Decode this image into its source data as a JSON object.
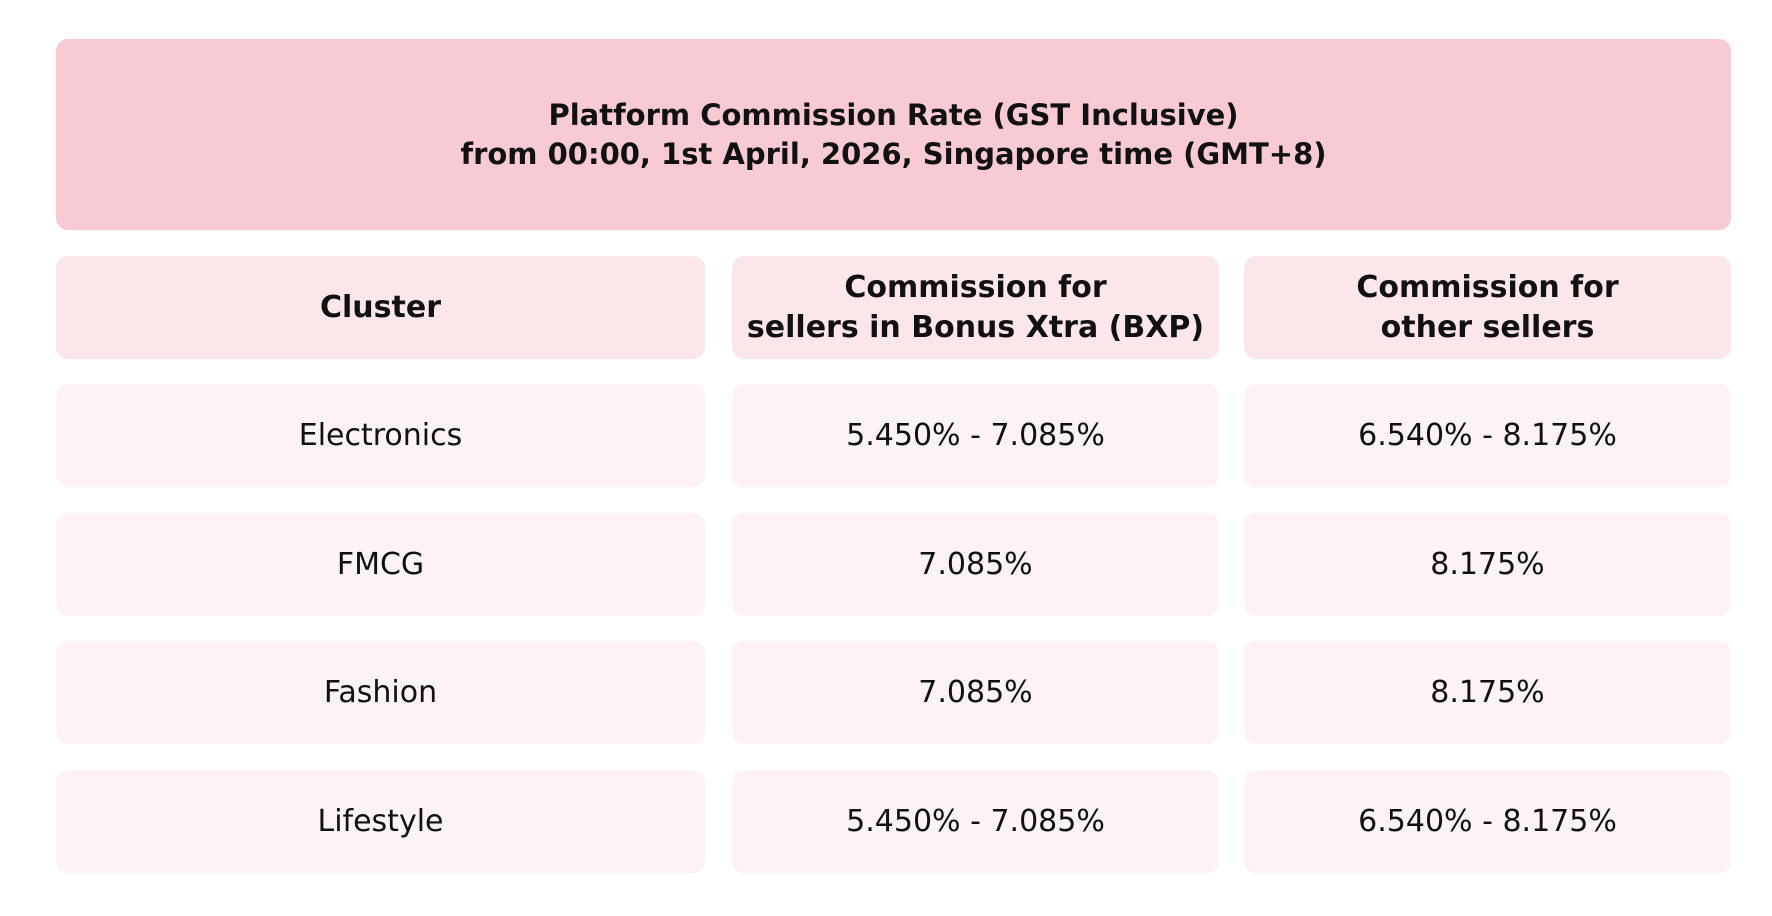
{
  "header": {
    "title": "Platform Commission Rate (GST Inclusive)\nfrom 00:00, 1st April, 2026, Singapore time (GMT+8)"
  },
  "table": {
    "columns": [
      "Cluster",
      "Commission for\nsellers in Bonus Xtra (BXP)",
      "Commission for\nother sellers"
    ],
    "rows": [
      [
        "Electronics",
        "5.450% - 7.085%",
        "6.540% - 8.175%"
      ],
      [
        "FMCG",
        "7.085%",
        "8.175%"
      ],
      [
        "Fashion",
        "7.085%",
        "8.175%"
      ],
      [
        "Lifestyle",
        "5.450% - 7.085%",
        "6.540% - 8.175%"
      ]
    ]
  }
}
